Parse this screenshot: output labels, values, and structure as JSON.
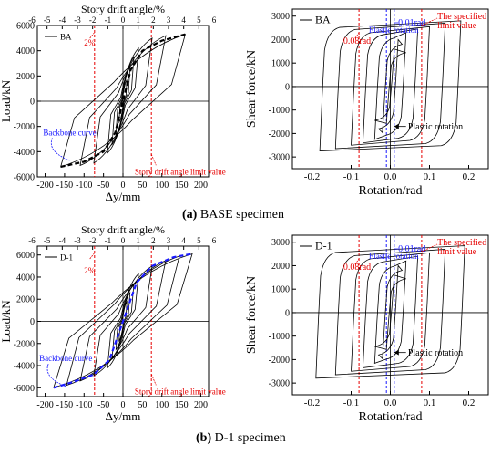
{
  "colors": {
    "hysteresis": "#000000",
    "backbone": "#1a1aff",
    "limit_line": "#e60000",
    "elastic_line": "#1a1aff",
    "annotation_red": "#e60000",
    "annotation_blue": "#1a1aff"
  },
  "captions": {
    "a_tag": "(a)",
    "a_text": " BASE specimen",
    "b_tag": "(b)",
    "b_text": " D-1 specimen"
  },
  "chart_data": [
    {
      "id": "a-left",
      "type": "line",
      "top_axis_label": "Story drift angle/%",
      "top_ticks": [
        -6,
        -5,
        -4,
        -3,
        -2,
        -1,
        0,
        1,
        2,
        3,
        4,
        5,
        6
      ],
      "xlabel": "Δy/mm",
      "ylabel": "Load/kN",
      "xlim": [
        -220,
        220
      ],
      "ylim": [
        -6000,
        6000
      ],
      "xticks": [
        -200,
        -150,
        -100,
        -50,
        0,
        50,
        100,
        150,
        200
      ],
      "yticks": [
        -6000,
        -4000,
        -2000,
        0,
        2000,
        4000,
        6000
      ],
      "legend": {
        "position": "top-left",
        "entries": [
          {
            "name": "BA"
          }
        ]
      },
      "limit_lines_x": [
        -73,
        73
      ],
      "series": [
        {
          "name": "BA",
          "peaks_x": [
            10,
            18,
            28,
            40,
            75,
            110,
            160
          ],
          "peaks_y": [
            1700,
            2700,
            3500,
            4200,
            5000,
            5200,
            5300
          ]
        }
      ],
      "backbone": {
        "x": [
          -160,
          -100,
          -50,
          -20,
          0,
          20,
          50,
          100,
          160
        ],
        "y": [
          -5200,
          -4800,
          -4000,
          -2500,
          0,
          2500,
          4000,
          4800,
          5300
        ]
      },
      "annotations": [
        {
          "label": "2%",
          "color": "red"
        },
        {
          "label": "Backbone curve",
          "color": "blue"
        },
        {
          "label": "Story drift angle limit value",
          "color": "red"
        }
      ]
    },
    {
      "id": "a-right",
      "type": "line",
      "xlabel": "Rotation/rad",
      "ylabel": "Shear force/kN",
      "xlim": [
        -0.25,
        0.25
      ],
      "ylim": [
        -3500,
        3300
      ],
      "xticks": [
        -0.2,
        -0.1,
        0.0,
        0.1,
        0.2
      ],
      "yticks": [
        -3000,
        -2000,
        -1000,
        0,
        1000,
        2000,
        3000
      ],
      "legend": {
        "position": "top-left",
        "entries": [
          {
            "name": "BA"
          }
        ]
      },
      "limit_lines_x": [
        -0.08,
        0.08
      ],
      "elastic_lines_x": [
        -0.01,
        0.01
      ],
      "series": [
        {
          "name": "BA",
          "peaks_x": [
            0.01,
            0.02,
            0.04,
            0.07,
            0.1,
            0.14,
            0.18
          ],
          "peaks_y": [
            1600,
            2000,
            2300,
            2450,
            2550,
            2700,
            2800
          ]
        }
      ],
      "annotations": [
        {
          "label": "Elastic rotation",
          "color": "blue"
        },
        {
          "label": "0.01rad",
          "color": "blue"
        },
        {
          "label": "The specified",
          "color": "red"
        },
        {
          "label": "limit value",
          "color": "red"
        },
        {
          "label": "0.08rad",
          "color": "red"
        },
        {
          "label": "Plastic rotation",
          "color": "black"
        }
      ]
    },
    {
      "id": "b-left",
      "type": "line",
      "top_axis_label": "Story drift angle/%",
      "top_ticks": [
        -6,
        -5,
        -4,
        -3,
        -2,
        -1,
        0,
        1,
        2,
        3,
        4,
        5,
        6
      ],
      "xlabel": "Δy/mm",
      "ylabel": "Load/kN",
      "xlim": [
        -220,
        220
      ],
      "ylim": [
        -6800,
        6800
      ],
      "xticks": [
        -200,
        -150,
        -100,
        -50,
        0,
        50,
        100,
        150,
        200
      ],
      "yticks": [
        -6000,
        -4000,
        -2000,
        0,
        2000,
        4000,
        6000
      ],
      "legend": {
        "position": "top-left",
        "entries": [
          {
            "name": "D-1"
          }
        ]
      },
      "limit_lines_x": [
        -73,
        73
      ],
      "series": [
        {
          "name": "D-1",
          "peaks_x": [
            10,
            18,
            28,
            40,
            75,
            110,
            145,
            178
          ],
          "peaks_y": [
            1800,
            2600,
            3400,
            4300,
            5000,
            5500,
            5900,
            6100
          ]
        }
      ],
      "backbone": {
        "x": [
          -178,
          -130,
          -75,
          -35,
          0,
          35,
          75,
          130,
          178
        ],
        "y": [
          -6000,
          -5500,
          -4800,
          -3500,
          0,
          3500,
          5000,
          5800,
          6100
        ]
      },
      "annotations": [
        {
          "label": "2%",
          "color": "red"
        },
        {
          "label": "Backbone curve",
          "color": "blue"
        },
        {
          "label": "Story drift angle limit value",
          "color": "red"
        }
      ]
    },
    {
      "id": "b-right",
      "type": "line",
      "xlabel": "Rotation/rad",
      "ylabel": "Shear force/kN",
      "xlim": [
        -0.25,
        0.25
      ],
      "ylim": [
        -3500,
        3300
      ],
      "xticks": [
        -0.2,
        -0.1,
        0.0,
        0.1,
        0.2
      ],
      "yticks": [
        -3000,
        -2000,
        -1000,
        0,
        1000,
        2000,
        3000
      ],
      "legend": {
        "position": "top-left",
        "entries": [
          {
            "name": "D-1"
          }
        ]
      },
      "limit_lines_x": [
        -0.08,
        0.08
      ],
      "elastic_lines_x": [
        -0.01,
        0.01
      ],
      "series": [
        {
          "name": "D-1",
          "peaks_x": [
            0.01,
            0.02,
            0.04,
            0.07,
            0.1,
            0.14,
            0.19
          ],
          "peaks_y": [
            1600,
            2000,
            2200,
            2400,
            2550,
            2700,
            2850
          ]
        }
      ],
      "annotations": [
        {
          "label": "Elastic rotation",
          "color": "blue"
        },
        {
          "label": "0.01rad",
          "color": "blue"
        },
        {
          "label": "The specified",
          "color": "red"
        },
        {
          "label": "limit value",
          "color": "red"
        },
        {
          "label": "0.08rad",
          "color": "red"
        },
        {
          "label": "Plastic rotation",
          "color": "black"
        }
      ]
    }
  ]
}
